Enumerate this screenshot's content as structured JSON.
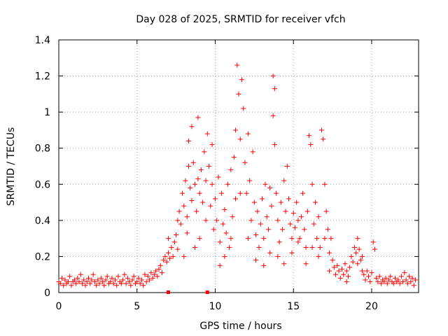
{
  "chart_data": {
    "type": "scatter",
    "title": "Day 028 of 2025, SRMTID for receiver vfch",
    "xlabel": "GPS time / hours",
    "ylabel": "SRMTID / TECUs",
    "xlim": [
      0,
      23
    ],
    "ylim": [
      0,
      1.4
    ],
    "x_ticks": [
      0,
      5,
      10,
      15,
      20
    ],
    "x_tick_labels": [
      "0",
      "5",
      "10",
      "15",
      "20"
    ],
    "y_ticks": [
      0,
      0.2,
      0.4,
      0.6,
      0.8,
      1.0,
      1.2,
      1.4
    ],
    "y_tick_labels": [
      "0",
      "0.2",
      "0.4",
      "0.6",
      "0.8",
      "1",
      "1.2",
      "1.4"
    ],
    "grid": true,
    "marker": "plus",
    "color": "#ff0000",
    "series": [
      {
        "name": "vfch",
        "points": [
          [
            0.0,
            0.06
          ],
          [
            0.1,
            0.05
          ],
          [
            0.2,
            0.08
          ],
          [
            0.3,
            0.04
          ],
          [
            0.4,
            0.07
          ],
          [
            0.5,
            0.05
          ],
          [
            0.6,
            0.06
          ],
          [
            0.7,
            0.09
          ],
          [
            0.8,
            0.04
          ],
          [
            0.9,
            0.06
          ],
          [
            1.0,
            0.07
          ],
          [
            1.1,
            0.05
          ],
          [
            1.2,
            0.08
          ],
          [
            1.3,
            0.06
          ],
          [
            1.4,
            0.1
          ],
          [
            1.5,
            0.05
          ],
          [
            1.6,
            0.07
          ],
          [
            1.7,
            0.04
          ],
          [
            1.8,
            0.06
          ],
          [
            1.9,
            0.08
          ],
          [
            2.0,
            0.05
          ],
          [
            2.1,
            0.07
          ],
          [
            2.2,
            0.1
          ],
          [
            2.3,
            0.06
          ],
          [
            2.4,
            0.04
          ],
          [
            2.5,
            0.07
          ],
          [
            2.6,
            0.05
          ],
          [
            2.7,
            0.08
          ],
          [
            2.8,
            0.06
          ],
          [
            2.9,
            0.04
          ],
          [
            3.0,
            0.07
          ],
          [
            3.1,
            0.09
          ],
          [
            3.2,
            0.05
          ],
          [
            3.3,
            0.06
          ],
          [
            3.4,
            0.08
          ],
          [
            3.5,
            0.05
          ],
          [
            3.6,
            0.07
          ],
          [
            3.7,
            0.04
          ],
          [
            3.8,
            0.09
          ],
          [
            3.9,
            0.06
          ],
          [
            4.0,
            0.05
          ],
          [
            4.1,
            0.07
          ],
          [
            4.2,
            0.1
          ],
          [
            4.3,
            0.05
          ],
          [
            4.4,
            0.08
          ],
          [
            4.5,
            0.06
          ],
          [
            4.6,
            0.04
          ],
          [
            4.7,
            0.07
          ],
          [
            4.8,
            0.09
          ],
          [
            4.9,
            0.05
          ],
          [
            5.0,
            0.06
          ],
          [
            5.1,
            0.08
          ],
          [
            5.2,
            0.05
          ],
          [
            5.3,
            0.07
          ],
          [
            5.4,
            0.04
          ],
          [
            5.5,
            0.1
          ],
          [
            5.6,
            0.06
          ],
          [
            5.7,
            0.09
          ],
          [
            5.8,
            0.07
          ],
          [
            5.9,
            0.11
          ],
          [
            6.0,
            0.08
          ],
          [
            6.1,
            0.1
          ],
          [
            6.2,
            0.12
          ],
          [
            6.3,
            0.09
          ],
          [
            6.4,
            0.13
          ],
          [
            6.5,
            0.15
          ],
          [
            6.6,
            0.11
          ],
          [
            6.7,
            0.18
          ],
          [
            6.8,
            0.2
          ],
          [
            6.9,
            0.17
          ],
          [
            7.0,
            0.22
          ],
          [
            7.1,
            0.19
          ],
          [
            7.2,
            0.25
          ],
          [
            7.3,
            0.2
          ],
          [
            7.4,
            0.28
          ],
          [
            7.5,
            0.32
          ],
          [
            7.6,
            0.24
          ],
          [
            7.7,
            0.45
          ],
          [
            7.8,
            0.38
          ],
          [
            7.9,
            0.55
          ],
          [
            8.0,
            0.48
          ],
          [
            8.1,
            0.62
          ],
          [
            8.2,
            0.42
          ],
          [
            8.3,
            0.7
          ],
          [
            8.4,
            0.58
          ],
          [
            8.5,
            0.51
          ],
          [
            8.6,
            0.72
          ],
          [
            8.7,
            0.6
          ],
          [
            8.8,
            0.45
          ],
          [
            8.9,
            0.63
          ],
          [
            8.5,
            0.92
          ],
          [
            8.9,
            0.97
          ],
          [
            8.3,
            0.84
          ],
          [
            9.0,
            0.55
          ],
          [
            9.1,
            0.68
          ],
          [
            9.2,
            0.5
          ],
          [
            9.3,
            0.78
          ],
          [
            9.4,
            0.62
          ],
          [
            9.5,
            0.88
          ],
          [
            9.6,
            0.7
          ],
          [
            9.7,
            0.48
          ],
          [
            9.8,
            0.6
          ],
          [
            9.9,
            0.35
          ],
          [
            10.0,
            0.52
          ],
          [
            10.1,
            0.4
          ],
          [
            10.2,
            0.64
          ],
          [
            10.3,
            0.28
          ],
          [
            10.4,
            0.55
          ],
          [
            10.5,
            0.38
          ],
          [
            10.6,
            0.46
          ],
          [
            10.7,
            0.33
          ],
          [
            10.8,
            0.6
          ],
          [
            10.9,
            0.25
          ],
          [
            11.0,
            0.68
          ],
          [
            11.1,
            0.42
          ],
          [
            11.2,
            0.75
          ],
          [
            11.3,
            0.9
          ],
          [
            11.4,
            1.26
          ],
          [
            11.5,
            1.1
          ],
          [
            11.6,
            0.85
          ],
          [
            11.7,
            1.18
          ],
          [
            11.8,
            1.02
          ],
          [
            11.9,
            0.72
          ],
          [
            12.0,
            0.55
          ],
          [
            12.1,
            0.88
          ],
          [
            12.2,
            0.62
          ],
          [
            12.3,
            0.4
          ],
          [
            12.4,
            0.78
          ],
          [
            12.5,
            0.5
          ],
          [
            12.6,
            0.32
          ],
          [
            12.7,
            0.45
          ],
          [
            12.8,
            0.25
          ],
          [
            12.9,
            0.38
          ],
          [
            13.0,
            0.52
          ],
          [
            13.1,
            0.3
          ],
          [
            13.2,
            0.6
          ],
          [
            13.3,
            0.42
          ],
          [
            13.4,
            0.35
          ],
          [
            13.5,
            0.58
          ],
          [
            13.6,
            0.48
          ],
          [
            13.7,
            1.2
          ],
          [
            13.8,
            1.13
          ],
          [
            13.7,
            0.98
          ],
          [
            13.8,
            0.82
          ],
          [
            13.9,
            0.55
          ],
          [
            14.0,
            0.4
          ],
          [
            14.1,
            0.28
          ],
          [
            14.2,
            0.5
          ],
          [
            14.3,
            0.35
          ],
          [
            14.4,
            0.62
          ],
          [
            14.5,
            0.45
          ],
          [
            14.6,
            0.7
          ],
          [
            14.7,
            0.52
          ],
          [
            14.8,
            0.38
          ],
          [
            14.9,
            0.3
          ],
          [
            15.0,
            0.44
          ],
          [
            15.1,
            0.36
          ],
          [
            15.2,
            0.5
          ],
          [
            15.3,
            0.4
          ],
          [
            15.4,
            0.3
          ],
          [
            15.5,
            0.42
          ],
          [
            15.6,
            0.55
          ],
          [
            15.7,
            0.35
          ],
          [
            15.8,
            0.25
          ],
          [
            15.9,
            0.45
          ],
          [
            16.0,
            0.87
          ],
          [
            16.1,
            0.82
          ],
          [
            16.2,
            0.6
          ],
          [
            16.3,
            0.38
          ],
          [
            16.4,
            0.5
          ],
          [
            16.5,
            0.3
          ],
          [
            16.6,
            0.42
          ],
          [
            16.7,
            0.25
          ],
          [
            16.8,
            0.9
          ],
          [
            16.9,
            0.85
          ],
          [
            17.0,
            0.6
          ],
          [
            17.1,
            0.45
          ],
          [
            17.2,
            0.35
          ],
          [
            17.3,
            0.22
          ],
          [
            17.4,
            0.3
          ],
          [
            17.5,
            0.18
          ],
          [
            17.6,
            0.14
          ],
          [
            17.7,
            0.1
          ],
          [
            17.8,
            0.15
          ],
          [
            17.9,
            0.12
          ],
          [
            18.0,
            0.08
          ],
          [
            18.1,
            0.13
          ],
          [
            18.2,
            0.1
          ],
          [
            18.3,
            0.16
          ],
          [
            18.4,
            0.12
          ],
          [
            18.5,
            0.09
          ],
          [
            18.6,
            0.14
          ],
          [
            18.7,
            0.2
          ],
          [
            18.8,
            0.17
          ],
          [
            18.9,
            0.25
          ],
          [
            19.0,
            0.22
          ],
          [
            19.1,
            0.3
          ],
          [
            19.2,
            0.24
          ],
          [
            19.3,
            0.18
          ],
          [
            19.4,
            0.12
          ],
          [
            19.5,
            0.1
          ],
          [
            19.6,
            0.07
          ],
          [
            19.7,
            0.12
          ],
          [
            19.8,
            0.09
          ],
          [
            19.9,
            0.06
          ],
          [
            20.0,
            0.11
          ],
          [
            20.1,
            0.28
          ],
          [
            20.2,
            0.24
          ],
          [
            20.3,
            0.08
          ],
          [
            20.4,
            0.06
          ],
          [
            20.5,
            0.09
          ],
          [
            20.6,
            0.05
          ],
          [
            20.7,
            0.07
          ],
          [
            20.8,
            0.06
          ],
          [
            20.9,
            0.08
          ],
          [
            21.0,
            0.05
          ],
          [
            21.1,
            0.07
          ],
          [
            21.2,
            0.09
          ],
          [
            21.3,
            0.06
          ],
          [
            21.4,
            0.05
          ],
          [
            21.5,
            0.08
          ],
          [
            21.6,
            0.06
          ],
          [
            21.7,
            0.07
          ],
          [
            21.8,
            0.05
          ],
          [
            21.9,
            0.09
          ],
          [
            22.0,
            0.06
          ],
          [
            22.1,
            0.11
          ],
          [
            22.2,
            0.07
          ],
          [
            22.3,
            0.05
          ],
          [
            22.4,
            0.09
          ],
          [
            22.5,
            0.06
          ],
          [
            22.6,
            0.08
          ],
          [
            22.7,
            0.04
          ],
          [
            22.8,
            0.07
          ],
          [
            7.0,
            0.3
          ],
          [
            7.6,
            0.4
          ],
          [
            8.0,
            0.2
          ],
          [
            8.2,
            0.33
          ],
          [
            8.7,
            0.25
          ],
          [
            9.0,
            0.3
          ],
          [
            9.4,
            0.4
          ],
          [
            9.8,
            0.82
          ],
          [
            10.3,
            0.15
          ],
          [
            10.6,
            0.2
          ],
          [
            11.0,
            0.3
          ],
          [
            11.3,
            0.52
          ],
          [
            11.6,
            0.55
          ],
          [
            12.1,
            0.3
          ],
          [
            12.6,
            0.18
          ],
          [
            13.1,
            0.15
          ],
          [
            13.5,
            0.22
          ],
          [
            14.0,
            0.2
          ],
          [
            14.4,
            0.16
          ],
          [
            14.9,
            0.22
          ],
          [
            15.3,
            0.28
          ],
          [
            15.8,
            0.16
          ],
          [
            16.2,
            0.25
          ],
          [
            16.6,
            0.2
          ],
          [
            17.0,
            0.3
          ],
          [
            17.3,
            0.12
          ],
          [
            18.4,
            0.06
          ],
          [
            19.1,
            0.16
          ],
          [
            19.4,
            0.2
          ]
        ]
      }
    ],
    "baseline_markers_x": [
      7.0,
      9.5
    ]
  }
}
